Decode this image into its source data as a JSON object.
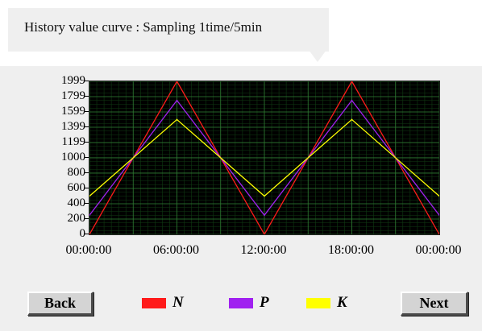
{
  "header": {
    "title": "History value curve : Sampling 1time/5min"
  },
  "chart_data": {
    "type": "line",
    "x": [
      "00:00:00",
      "06:00:00",
      "12:00:00",
      "18:00:00",
      "00:00:00"
    ],
    "x_hours": [
      0,
      6,
      12,
      18,
      24
    ],
    "ylim": [
      0,
      1999
    ],
    "yticks": [
      1999,
      1799,
      1599,
      1399,
      1199,
      1000,
      800,
      600,
      400,
      200,
      0
    ],
    "grid": true,
    "series": [
      {
        "name": "N",
        "color": "#ff1a1a",
        "values": [
          0,
          1999,
          0,
          1999,
          0
        ]
      },
      {
        "name": "P",
        "color": "#a020f0",
        "values": [
          250,
          1750,
          250,
          1750,
          250
        ]
      },
      {
        "name": "K",
        "color": "#ffff00",
        "values": [
          500,
          1500,
          500,
          1500,
          500
        ]
      }
    ]
  },
  "legend": [
    {
      "label": "N",
      "color": "#ff1a1a"
    },
    {
      "label": "P",
      "color": "#a020f0"
    },
    {
      "label": "K",
      "color": "#ffff00"
    }
  ],
  "buttons": {
    "back_label": "Back",
    "next_label": "Next"
  }
}
